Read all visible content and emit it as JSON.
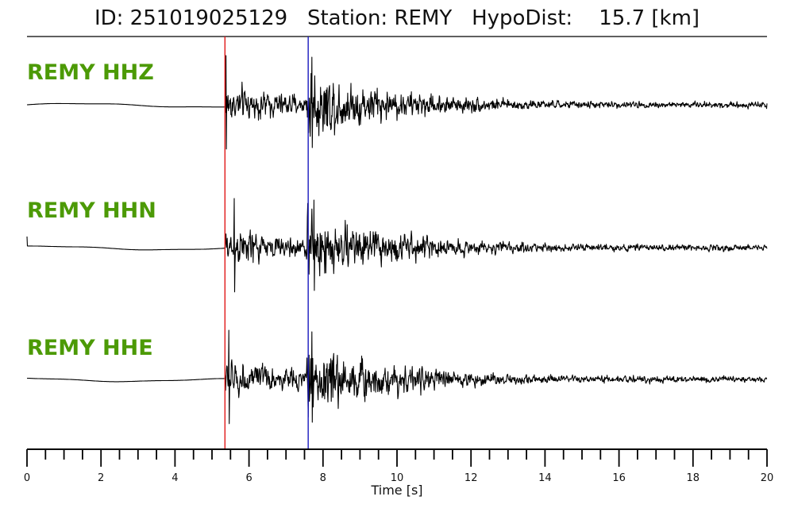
{
  "title": {
    "id_label": "ID:",
    "id_value": "251019025129",
    "station_label": "Station:",
    "station_value": "REMY",
    "hypodist_label": "HypoDist:",
    "hypodist_value": "15.7",
    "hypodist_unit": "[km]"
  },
  "colors": {
    "trace": "#000000",
    "label": "#4c9a06",
    "p_pick": "#e11919",
    "s_pick": "#1a1abf"
  },
  "chart_data": {
    "type": "line",
    "xlabel": "Time [s]",
    "xlim": [
      0,
      20
    ],
    "x_ticks": [
      0,
      2,
      4,
      6,
      8,
      10,
      12,
      14,
      16,
      18,
      20
    ],
    "minor_tick_step": 0.5,
    "grid": false,
    "legend": "none",
    "picks": [
      {
        "phase": "P",
        "time": 5.35,
        "color": "#e11919"
      },
      {
        "phase": "S",
        "time": 7.6,
        "color": "#1a1abf"
      }
    ],
    "series": [
      {
        "name": "REMY HHZ",
        "peak_first": 5.38,
        "peak_second": 7.7
      },
      {
        "name": "REMY HHN",
        "peak_first": 5.6,
        "peak_second": 7.75
      },
      {
        "name": "REMY HHE",
        "peak_first": 5.45,
        "peak_second": 7.7
      }
    ]
  }
}
